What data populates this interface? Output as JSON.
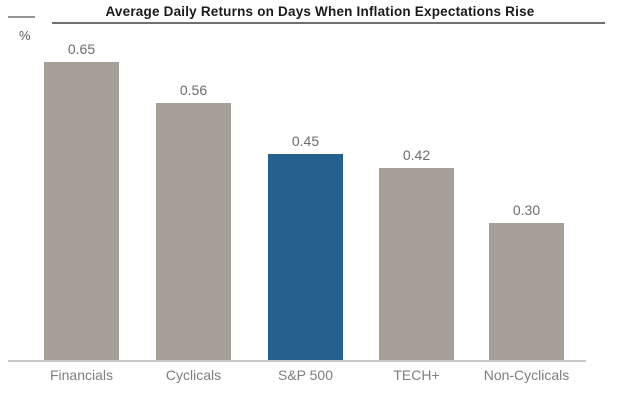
{
  "chart_data": {
    "type": "bar",
    "title": "Average Daily Returns on Days When Inflation Expectations Rise",
    "unit": "%",
    "categories": [
      "Financials",
      "Cyclicals",
      "S&P 500",
      "TECH+",
      "Non-Cyclicals"
    ],
    "values": [
      0.65,
      0.56,
      0.45,
      0.42,
      0.3
    ],
    "value_labels": [
      "0.65",
      "0.56",
      "0.45",
      "0.42",
      "0.30"
    ],
    "highlight_index": 2,
    "ylim": [
      0,
      0.7
    ],
    "grid": false,
    "legend": null,
    "layout_hints": {
      "value_labels_position": "above-bars",
      "category_labels_position": "below-axis",
      "y_axis_ticks": "none"
    },
    "colors": {
      "bar_default": "#a59f98",
      "bar_highlight": "#26608f",
      "title_text": "#1a1a1a",
      "value_label": "#6d6d6d",
      "category_label": "#7d7e80",
      "axis_line": "#c9c9c9",
      "title_rule": "#707070"
    }
  }
}
